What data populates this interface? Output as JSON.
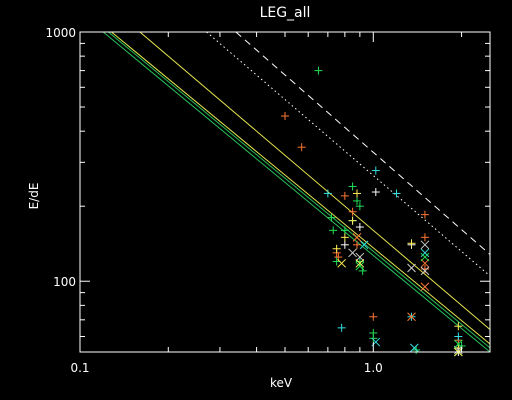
{
  "chart_data": {
    "type": "scatter",
    "title": "LEG_all",
    "xlabel": "keV",
    "ylabel": "E/dE",
    "x_scale": "log",
    "y_scale": "log",
    "xlim": [
      0.1,
      2.5
    ],
    "ylim": [
      52,
      1000
    ],
    "x_ticks": [
      {
        "value": 0.1,
        "label": "0.1"
      },
      {
        "value": 1.0,
        "label": "1.0"
      }
    ],
    "y_ticks": [
      {
        "value": 100,
        "label": "100"
      },
      {
        "value": 1000,
        "label": "1000"
      }
    ],
    "grid": false,
    "background": "#000000",
    "axis_color": "#ffffff",
    "reference_lines": [
      {
        "style": "solid",
        "color": "#27c05a",
        "points": [
          [
            0.12,
            1000
          ],
          [
            2.5,
            52
          ]
        ]
      },
      {
        "style": "solid",
        "color": "#27c05a",
        "points": [
          [
            0.125,
            1000
          ],
          [
            2.5,
            54
          ]
        ]
      },
      {
        "style": "solid",
        "color": "#e8e850",
        "points": [
          [
            0.128,
            1000
          ],
          [
            2.5,
            56
          ]
        ]
      },
      {
        "style": "solid",
        "color": "#e8e850",
        "points": [
          [
            0.16,
            1000
          ],
          [
            2.5,
            64
          ]
        ]
      },
      {
        "style": "dotted",
        "color": "#ffffff",
        "points": [
          [
            0.27,
            1000
          ],
          [
            2.5,
            105
          ]
        ]
      },
      {
        "style": "dashed",
        "color": "#ffffff",
        "points": [
          [
            0.34,
            1000
          ],
          [
            2.5,
            128
          ]
        ]
      }
    ],
    "series": [
      {
        "marker": "plus",
        "color": "#22dd55",
        "points": [
          [
            0.65,
            700
          ],
          [
            0.72,
            180
          ],
          [
            0.73,
            160
          ],
          [
            0.8,
            160
          ],
          [
            0.85,
            240
          ],
          [
            0.88,
            210
          ],
          [
            0.9,
            200
          ],
          [
            0.9,
            120
          ],
          [
            0.92,
            110
          ],
          [
            0.75,
            120
          ],
          [
            1.0,
            62
          ],
          [
            1.0,
            59
          ],
          [
            1.4,
            53
          ],
          [
            2.0,
            55
          ]
        ]
      },
      {
        "marker": "plus",
        "color": "#ff7733",
        "points": [
          [
            0.5,
            460
          ],
          [
            0.57,
            345
          ],
          [
            0.8,
            220
          ],
          [
            0.85,
            190
          ],
          [
            0.75,
            130
          ],
          [
            0.76,
            125
          ],
          [
            0.88,
            140
          ],
          [
            1.0,
            72
          ],
          [
            1.5,
            185
          ],
          [
            1.5,
            150
          ],
          [
            1.5,
            112
          ],
          [
            1.95,
            58
          ]
        ]
      },
      {
        "marker": "plus",
        "color": "#33dddd",
        "points": [
          [
            1.02,
            278
          ],
          [
            1.2,
            225
          ],
          [
            0.7,
            225
          ],
          [
            0.85,
            175
          ],
          [
            0.78,
            65
          ],
          [
            1.35,
            72
          ],
          [
            1.95,
            60
          ]
        ]
      },
      {
        "marker": "plus",
        "color": "#ffffff",
        "points": [
          [
            1.02,
            228
          ],
          [
            0.9,
            165
          ],
          [
            0.8,
            140
          ],
          [
            1.35,
            140
          ],
          [
            1.95,
            52
          ]
        ]
      },
      {
        "marker": "plus",
        "color": "#ffee55",
        "points": [
          [
            0.88,
            225
          ],
          [
            0.8,
            150
          ],
          [
            0.75,
            135
          ],
          [
            0.85,
            175
          ],
          [
            1.35,
            142
          ],
          [
            1.95,
            66
          ],
          [
            1.95,
            54
          ]
        ]
      },
      {
        "marker": "x",
        "color": "#33dddd",
        "points": [
          [
            0.93,
            140
          ],
          [
            1.5,
            130
          ],
          [
            1.38,
            54
          ],
          [
            1.02,
            57
          ]
        ]
      },
      {
        "marker": "x",
        "color": "#ff7733",
        "points": [
          [
            0.88,
            150
          ],
          [
            1.5,
            95
          ],
          [
            1.35,
            72
          ],
          [
            1.5,
            118
          ]
        ]
      },
      {
        "marker": "x",
        "color": "#cccccc",
        "points": [
          [
            0.85,
            130
          ],
          [
            0.9,
            125
          ],
          [
            1.5,
            140
          ],
          [
            1.5,
            110
          ],
          [
            1.35,
            113
          ],
          [
            1.95,
            53
          ]
        ]
      },
      {
        "marker": "x",
        "color": "#22dd55",
        "points": [
          [
            0.9,
            115
          ],
          [
            1.5,
            125
          ],
          [
            1.95,
            52
          ],
          [
            1.95,
            56
          ]
        ]
      },
      {
        "marker": "x",
        "color": "#ffee55",
        "points": [
          [
            0.78,
            118
          ],
          [
            0.9,
            118
          ],
          [
            1.95,
            52
          ]
        ]
      }
    ]
  }
}
